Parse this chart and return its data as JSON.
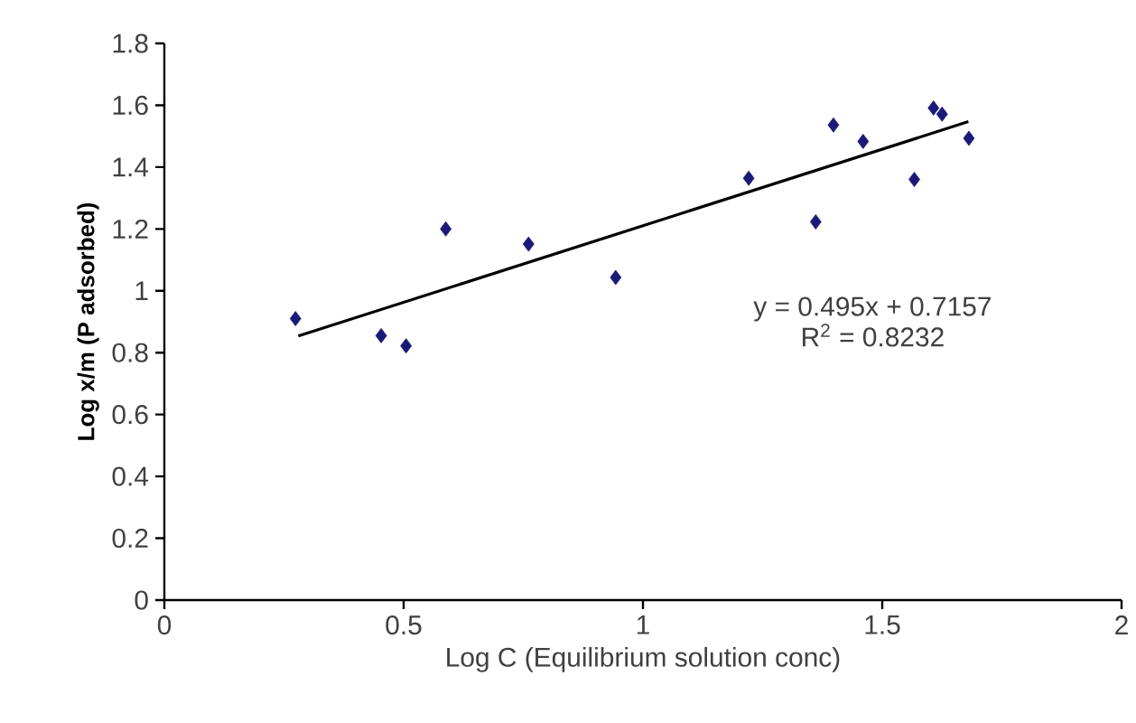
{
  "chart_data": {
    "type": "scatter",
    "xlabel": "Log C (Equilibrium solution conc)",
    "ylabel": "Log x/m (P adsorbed)",
    "xlim": [
      0,
      2
    ],
    "xticks": [
      0,
      0.5,
      1,
      1.5,
      2
    ],
    "ylim": [
      0,
      1.8
    ],
    "yticks": [
      0,
      0.2,
      0.4,
      0.6,
      0.8,
      1,
      1.2,
      1.4,
      1.6,
      1.8
    ],
    "grid": false,
    "series": [
      {
        "color": "#1c1a78",
        "marker": "diamond",
        "x": [
          0.274,
          0.453,
          0.505,
          0.588,
          0.761,
          0.943,
          1.221,
          1.361,
          1.398,
          1.46,
          1.567,
          1.607,
          1.625,
          1.681
        ],
        "values": [
          0.91,
          0.855,
          0.822,
          1.2,
          1.151,
          1.043,
          1.364,
          1.223,
          1.536,
          1.483,
          1.36,
          1.591,
          1.571,
          1.493
        ]
      },
      {
        "type": "line",
        "color": "#000000",
        "marker": "none",
        "line_style": "solid",
        "x": [
          0.28,
          1.68
        ],
        "values": [
          0.854,
          1.547
        ]
      }
    ],
    "annotations": [
      "y = 0.495x + 0.7157",
      "R$^{2}$ = 0.8232"
    ]
  }
}
